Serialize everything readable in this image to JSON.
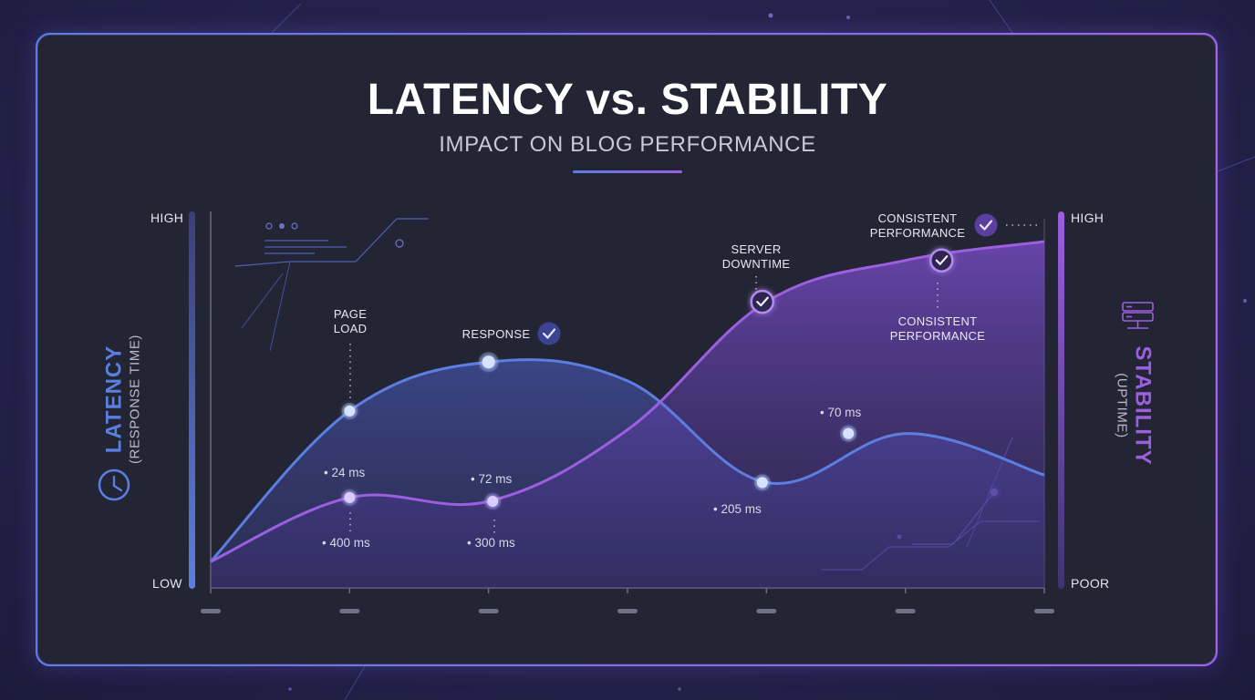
{
  "header": {
    "title": "LATENCY vs. STABILITY",
    "subtitle": "IMPACT ON BLOG PERFORMANCE"
  },
  "left_axis": {
    "title": "LATENCY",
    "subtitle": "(RESPONSE TIME)",
    "high_label": "HIGH",
    "low_label": "LOW",
    "icon": "clock-icon",
    "color": "#5b7fe0"
  },
  "right_axis": {
    "title": "STABILITY",
    "subtitle": "(UPTIME)",
    "high_label": "HIGH",
    "low_label": "POOR",
    "icon": "server-icon",
    "color": "#9b5fe0"
  },
  "annotations": {
    "page_load": "PAGE\nLOAD",
    "response": "RESPONSE",
    "server_downtime": "SERVER\nDOWNTIME",
    "consistent_top": "CONSISTENT\nPERFORMANCE",
    "consistent_bottom": "CONSISTENT\nPERFORMANCE"
  },
  "value_labels": {
    "v24": "24 ms",
    "v400": "400 ms",
    "v72": "72 ms",
    "v300": "300 ms",
    "v205": "205 ms",
    "v70": "70 ms"
  },
  "chart_data": {
    "type": "area",
    "x": [
      0,
      1,
      2,
      3,
      4,
      5,
      6
    ],
    "series": [
      {
        "key": "latency",
        "values": [
          0.07,
          0.47,
          0.6,
          0.55,
          0.28,
          0.41,
          0.3
        ]
      },
      {
        "key": "stability",
        "values": [
          0.07,
          0.24,
          0.23,
          0.42,
          0.76,
          0.87,
          0.92
        ]
      }
    ],
    "markers": [
      {
        "series": "latency",
        "x": 1,
        "y": 0.47,
        "label": "page_load"
      },
      {
        "series": "latency",
        "x": 2,
        "y": 0.6,
        "label": "response"
      },
      {
        "series": "latency",
        "x": 3.97,
        "y": 0.28
      },
      {
        "series": "latency",
        "x": 4.59,
        "y": 0.41
      },
      {
        "series": "stability",
        "x": 1,
        "y": 0.24
      },
      {
        "series": "stability",
        "x": 2.03,
        "y": 0.23
      },
      {
        "series": "stability",
        "x": 3.97,
        "y": 0.76,
        "label": "server_downtime"
      },
      {
        "series": "stability",
        "x": 5.26,
        "y": 0.87,
        "label": "consistent"
      }
    ],
    "ylim": [
      0,
      1
    ],
    "grid": false,
    "colors": {
      "latency": "#5b7fe0",
      "stability": "#9b5fe0"
    }
  }
}
